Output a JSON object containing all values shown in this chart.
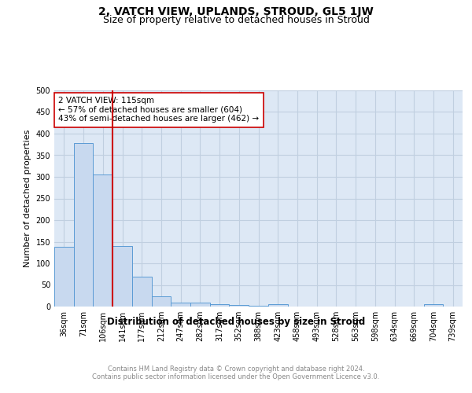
{
  "title": "2, VATCH VIEW, UPLANDS, STROUD, GL5 1JW",
  "subtitle": "Size of property relative to detached houses in Stroud",
  "xlabel": "Distribution of detached houses by size in Stroud",
  "ylabel": "Number of detached properties",
  "categories": [
    "36sqm",
    "71sqm",
    "106sqm",
    "141sqm",
    "177sqm",
    "212sqm",
    "247sqm",
    "282sqm",
    "317sqm",
    "352sqm",
    "388sqm",
    "423sqm",
    "458sqm",
    "493sqm",
    "528sqm",
    "563sqm",
    "598sqm",
    "634sqm",
    "669sqm",
    "704sqm",
    "739sqm"
  ],
  "values": [
    138,
    378,
    305,
    140,
    70,
    23,
    10,
    9,
    5,
    3,
    2,
    5,
    0,
    0,
    0,
    0,
    0,
    0,
    0,
    5,
    0
  ],
  "bar_color": "#c8d9ef",
  "bar_edge_color": "#5b9bd5",
  "vline_x": 2.5,
  "vline_color": "#cc0000",
  "annotation_text": "2 VATCH VIEW: 115sqm\n← 57% of detached houses are smaller (604)\n43% of semi-detached houses are larger (462) →",
  "annotation_box_color": "#ffffff",
  "annotation_box_edge": "#cc0000",
  "ylim": [
    0,
    500
  ],
  "yticks": [
    0,
    50,
    100,
    150,
    200,
    250,
    300,
    350,
    400,
    450,
    500
  ],
  "grid_color": "#c0cfe0",
  "background_color": "#dde8f5",
  "footer_text": "Contains HM Land Registry data © Crown copyright and database right 2024.\nContains public sector information licensed under the Open Government Licence v3.0.",
  "title_fontsize": 10,
  "subtitle_fontsize": 9,
  "xlabel_fontsize": 8.5,
  "ylabel_fontsize": 8,
  "tick_fontsize": 7,
  "annotation_fontsize": 7.5,
  "footer_fontsize": 6
}
